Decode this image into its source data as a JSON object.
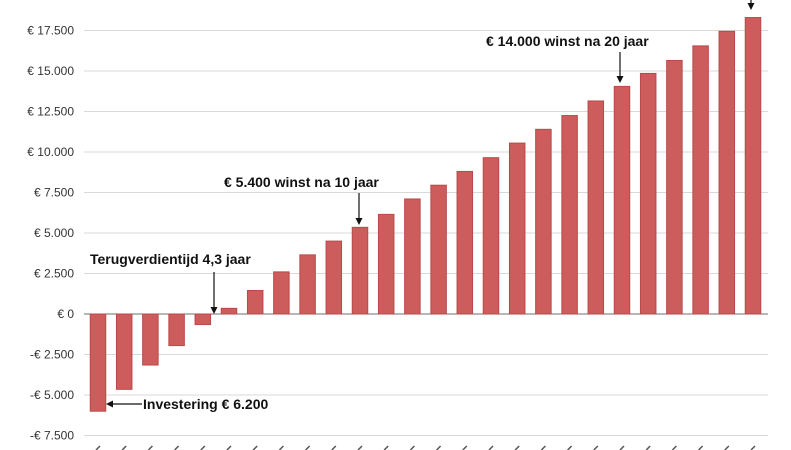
{
  "chart_data": {
    "type": "bar",
    "title": "",
    "xlabel": "",
    "ylabel": "",
    "currency_prefix": "€ ",
    "ylim": [
      -7500,
      18500
    ],
    "yticks": [
      -7500,
      -5000,
      -2500,
      0,
      2500,
      5000,
      7500,
      10000,
      12500,
      15000,
      17500
    ],
    "ytick_labels": [
      "-€ 7.500",
      "-€ 5.000",
      "-€ 2.500",
      "€ 0",
      "€ 2.500",
      "€ 5.000",
      "€ 7.500",
      "€ 10.000",
      "€ 12.500",
      "€ 15.000",
      "€ 17.500"
    ],
    "grid": true,
    "bar_color": "#cd5c5c",
    "values": [
      -6000,
      -4650,
      -3150,
      -1950,
      -650,
      350,
      1450,
      2600,
      3650,
      4500,
      5350,
      6150,
      7100,
      7950,
      8800,
      9650,
      10550,
      11400,
      12250,
      13150,
      14050,
      14850,
      15650,
      16550,
      17450,
      18300
    ],
    "annotations": [
      {
        "text": "Terugverdientijd 4,3 jaar",
        "bar_index": 4,
        "value": 0
      },
      {
        "text": "€ 5.400 winst na 10 jaar",
        "bar_index": 10,
        "value": 5400
      },
      {
        "text": "€ 14.000 winst na 20 jaar",
        "bar_index": 20,
        "value": 14000
      },
      {
        "text": "Investering € 6.200",
        "bar_index": 0,
        "value": -5900
      }
    ]
  }
}
